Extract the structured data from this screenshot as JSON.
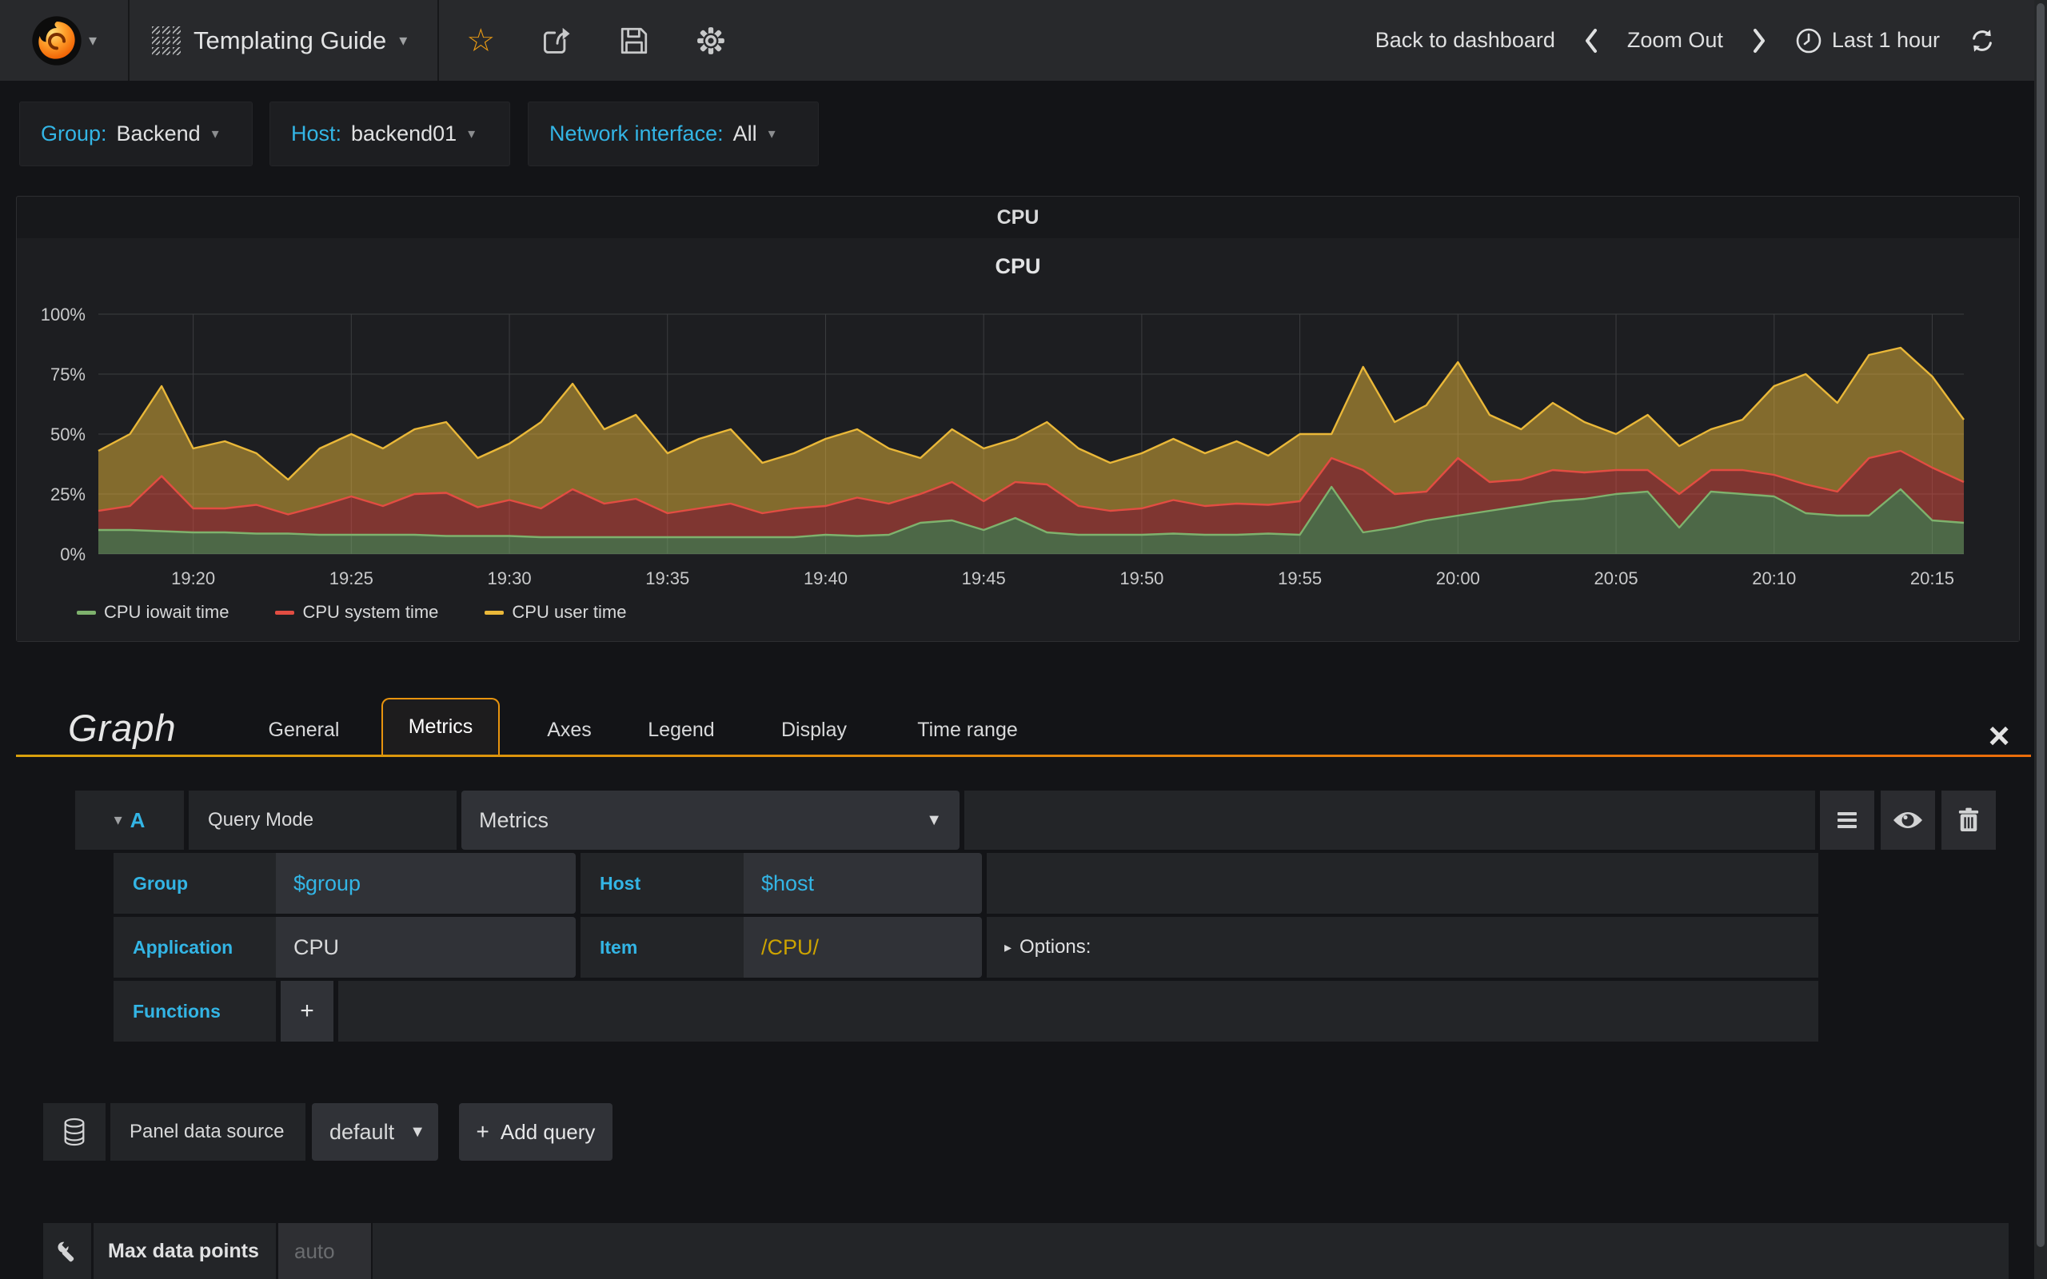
{
  "navbar": {
    "title": "Templating Guide",
    "back": "Back to dashboard",
    "zoom_out": "Zoom Out",
    "time_range": "Last 1 hour"
  },
  "variables": [
    {
      "label": "Group:",
      "value": "Backend"
    },
    {
      "label": "Host:",
      "value": "backend01"
    },
    {
      "label": "Network interface:",
      "value": "All"
    }
  ],
  "panel": {
    "title": "CPU"
  },
  "chart_data": {
    "type": "area",
    "stacked": true,
    "title": "CPU",
    "grid": true,
    "legend_position": "bottom",
    "ylim": [
      0,
      100
    ],
    "y_ticks": [
      "0%",
      "25%",
      "50%",
      "75%",
      "100%"
    ],
    "start_time": "19:17",
    "end_time": "20:16",
    "step_minutes": 1,
    "x_ticks": [
      {
        "minute": 3,
        "label": "19:20"
      },
      {
        "minute": 8,
        "label": "19:25"
      },
      {
        "minute": 13,
        "label": "19:30"
      },
      {
        "minute": 18,
        "label": "19:35"
      },
      {
        "minute": 23,
        "label": "19:40"
      },
      {
        "minute": 28,
        "label": "19:45"
      },
      {
        "minute": 33,
        "label": "19:50"
      },
      {
        "minute": 38,
        "label": "19:55"
      },
      {
        "minute": 43,
        "label": "20:00"
      },
      {
        "minute": 48,
        "label": "20:05"
      },
      {
        "minute": 53,
        "label": "20:10"
      },
      {
        "minute": 58,
        "label": "20:15"
      }
    ],
    "series": [
      {
        "name": "CPU iowait time",
        "color": "#7EB26D",
        "values": [
          10,
          10,
          9.5,
          9,
          9,
          8.5,
          8.5,
          8,
          8,
          8,
          8,
          7.5,
          7.5,
          7.5,
          7,
          7,
          7,
          7,
          7,
          7,
          7,
          7,
          7,
          8,
          7.5,
          8,
          13,
          14,
          10,
          15,
          9,
          8,
          8,
          8,
          8.5,
          8,
          8,
          8.5,
          8,
          28,
          9,
          11,
          14,
          16,
          18,
          20,
          22,
          23,
          25,
          26,
          11,
          26,
          25,
          24,
          17,
          16,
          16,
          27,
          14,
          13
        ]
      },
      {
        "name": "CPU system time",
        "color": "#E24D42",
        "values": [
          8,
          10,
          23,
          10,
          10,
          12,
          8,
          12,
          16,
          12,
          17,
          18,
          12,
          15,
          12,
          20,
          14,
          16,
          10,
          12,
          14,
          10,
          12,
          12,
          16,
          13,
          12,
          16,
          12,
          15,
          20,
          12,
          10,
          11,
          14,
          12,
          13,
          12,
          14,
          12,
          26,
          14,
          12,
          24,
          12,
          11,
          13,
          11,
          10,
          9,
          14,
          9,
          10,
          9,
          12,
          10,
          24,
          16,
          22,
          17
        ]
      },
      {
        "name": "CPU user time",
        "color": "#EAB839",
        "values": [
          25,
          30,
          37.5,
          25,
          28,
          21.5,
          14.5,
          24,
          26,
          24,
          27,
          29.5,
          20.5,
          23.5,
          36,
          44,
          31,
          35,
          25,
          29,
          31,
          21,
          23,
          28,
          28.5,
          23,
          15,
          22,
          22,
          18,
          26,
          24,
          20,
          23,
          25.5,
          22,
          26,
          20.5,
          28,
          10,
          43,
          30,
          36,
          40,
          28,
          21,
          28,
          21,
          15,
          23,
          20,
          17,
          21,
          37,
          46,
          37,
          43,
          43,
          38,
          26
        ]
      }
    ]
  },
  "editor": {
    "title": "Graph",
    "close_label": "×",
    "tabs": [
      {
        "label": "General"
      },
      {
        "label": "Metrics"
      },
      {
        "label": "Axes"
      },
      {
        "label": "Legend"
      },
      {
        "label": "Display"
      },
      {
        "label": "Time range"
      }
    ],
    "query": {
      "letter": "A",
      "query_mode_label": "Query Mode",
      "query_mode_value": "Metrics",
      "group_label": "Group",
      "group_value": "$group",
      "host_label": "Host",
      "host_value": "$host",
      "application_label": "Application",
      "application_value": "CPU",
      "item_label": "Item",
      "item_value": "/CPU/",
      "options_label": "Options:",
      "functions_label": "Functions",
      "add_function_label": "+"
    },
    "datasource": {
      "label": "Panel data source",
      "value": "default",
      "plus": "+",
      "add_query_label": "Add query"
    },
    "max_data_points": {
      "label": "Max data points",
      "placeholder": "auto"
    }
  },
  "colors": {
    "accent_blue": "#33B5E5",
    "regex_gold": "#CCA300",
    "tab_orange": "#E8940E",
    "star_orange": "#EB9B13"
  }
}
